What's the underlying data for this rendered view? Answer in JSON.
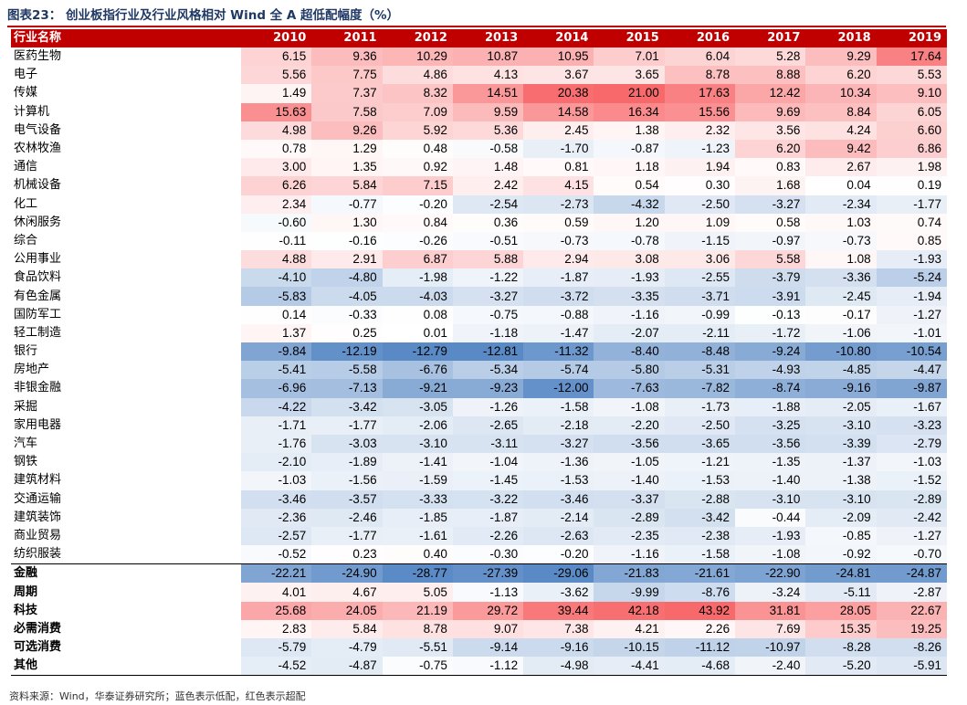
{
  "title": "图表23：  创业板指行业及行业风格相对 Wind 全 A 超低配幅度（%）",
  "source": "资料来源：Wind，华泰证券研究所；蓝色表示低配，红色表示超配",
  "table": {
    "header": "行业名称",
    "years": [
      "2010",
      "2011",
      "2012",
      "2013",
      "2014",
      "2015",
      "2016",
      "2017",
      "2018",
      "2019"
    ],
    "rows": [
      {
        "name": "医药生物",
        "values": [
          "6.15",
          "9.36",
          "10.29",
          "10.87",
          "10.95",
          "7.01",
          "6.04",
          "5.28",
          "9.29",
          "17.64"
        ]
      },
      {
        "name": "电子",
        "values": [
          "5.56",
          "7.75",
          "4.86",
          "4.13",
          "3.67",
          "3.65",
          "8.78",
          "8.88",
          "6.20",
          "5.53"
        ]
      },
      {
        "name": "传媒",
        "values": [
          "1.49",
          "7.37",
          "8.32",
          "14.51",
          "20.38",
          "21.00",
          "17.63",
          "12.42",
          "10.34",
          "9.10"
        ]
      },
      {
        "name": "计算机",
        "values": [
          "15.63",
          "7.58",
          "7.09",
          "9.59",
          "14.58",
          "16.34",
          "15.56",
          "9.69",
          "8.84",
          "6.05"
        ]
      },
      {
        "name": "电气设备",
        "values": [
          "4.98",
          "9.26",
          "5.92",
          "5.36",
          "2.45",
          "1.38",
          "2.32",
          "3.56",
          "4.24",
          "6.60"
        ]
      },
      {
        "name": "农林牧渔",
        "values": [
          "0.78",
          "1.29",
          "0.48",
          "-0.58",
          "-1.70",
          "-0.87",
          "-1.23",
          "6.20",
          "9.42",
          "6.86"
        ]
      },
      {
        "name": "通信",
        "values": [
          "3.00",
          "1.35",
          "0.92",
          "1.48",
          "0.81",
          "1.18",
          "1.94",
          "0.83",
          "2.67",
          "1.98"
        ]
      },
      {
        "name": "机械设备",
        "values": [
          "6.26",
          "5.84",
          "7.15",
          "2.42",
          "4.15",
          "0.54",
          "0.30",
          "1.68",
          "0.04",
          "0.19"
        ]
      },
      {
        "name": "化工",
        "values": [
          "2.34",
          "-0.77",
          "-0.20",
          "-2.54",
          "-2.73",
          "-4.32",
          "-2.50",
          "-3.27",
          "-2.34",
          "-1.77"
        ]
      },
      {
        "name": "休闲服务",
        "values": [
          "-0.60",
          "1.30",
          "0.84",
          "0.36",
          "0.59",
          "1.20",
          "1.09",
          "0.58",
          "1.03",
          "0.74"
        ]
      },
      {
        "name": "综合",
        "values": [
          "-0.11",
          "-0.16",
          "-0.26",
          "-0.51",
          "-0.73",
          "-0.78",
          "-1.15",
          "-0.97",
          "-0.73",
          "0.85"
        ]
      },
      {
        "name": "公用事业",
        "values": [
          "4.88",
          "2.91",
          "6.87",
          "5.88",
          "2.94",
          "3.08",
          "3.06",
          "5.58",
          "1.08",
          "-1.93"
        ]
      },
      {
        "name": "食品饮料",
        "values": [
          "-4.10",
          "-4.80",
          "-1.98",
          "-1.22",
          "-1.87",
          "-1.93",
          "-2.55",
          "-3.79",
          "-3.36",
          "-5.24"
        ]
      },
      {
        "name": "有色金属",
        "values": [
          "-5.83",
          "-4.05",
          "-4.03",
          "-3.27",
          "-3.72",
          "-3.35",
          "-3.71",
          "-3.91",
          "-2.45",
          "-1.94"
        ]
      },
      {
        "name": "国防军工",
        "values": [
          "0.14",
          "-0.33",
          "0.08",
          "-0.75",
          "-0.88",
          "-1.16",
          "-0.99",
          "-0.13",
          "-0.17",
          "-1.27"
        ]
      },
      {
        "name": "轻工制造",
        "values": [
          "1.37",
          "0.25",
          "0.01",
          "-1.18",
          "-1.47",
          "-2.07",
          "-2.11",
          "-1.72",
          "-1.06",
          "-1.01"
        ]
      },
      {
        "name": "银行",
        "values": [
          "-9.84",
          "-12.19",
          "-12.79",
          "-12.81",
          "-11.32",
          "-8.40",
          "-8.48",
          "-9.24",
          "-10.80",
          "-10.54"
        ]
      },
      {
        "name": "房地产",
        "values": [
          "-5.41",
          "-5.58",
          "-6.76",
          "-5.34",
          "-5.74",
          "-5.80",
          "-5.31",
          "-4.93",
          "-4.85",
          "-4.47"
        ]
      },
      {
        "name": "非银金融",
        "values": [
          "-6.96",
          "-7.13",
          "-9.21",
          "-9.23",
          "-12.00",
          "-7.63",
          "-7.82",
          "-8.74",
          "-9.16",
          "-9.87"
        ]
      },
      {
        "name": "采掘",
        "values": [
          "-4.22",
          "-3.42",
          "-3.05",
          "-1.26",
          "-1.58",
          "-1.08",
          "-1.73",
          "-1.88",
          "-2.05",
          "-1.67"
        ]
      },
      {
        "name": "家用电器",
        "values": [
          "-1.71",
          "-1.77",
          "-2.06",
          "-2.65",
          "-2.18",
          "-2.20",
          "-2.50",
          "-3.25",
          "-3.10",
          "-3.23"
        ]
      },
      {
        "name": "汽车",
        "values": [
          "-1.76",
          "-3.03",
          "-3.10",
          "-3.11",
          "-3.27",
          "-3.56",
          "-3.65",
          "-3.56",
          "-3.39",
          "-2.79"
        ]
      },
      {
        "name": "钢铁",
        "values": [
          "-2.10",
          "-1.89",
          "-1.41",
          "-1.04",
          "-1.36",
          "-1.05",
          "-1.21",
          "-1.35",
          "-1.37",
          "-1.03"
        ]
      },
      {
        "name": "建筑材料",
        "values": [
          "-1.03",
          "-1.56",
          "-1.59",
          "-1.45",
          "-1.53",
          "-1.40",
          "-1.53",
          "-1.40",
          "-1.38",
          "-1.52"
        ]
      },
      {
        "name": "交通运输",
        "values": [
          "-3.46",
          "-3.57",
          "-3.33",
          "-3.22",
          "-3.46",
          "-3.37",
          "-2.88",
          "-3.10",
          "-3.10",
          "-2.89"
        ]
      },
      {
        "name": "建筑装饰",
        "values": [
          "-2.36",
          "-2.46",
          "-1.85",
          "-1.87",
          "-2.14",
          "-2.89",
          "-3.42",
          "-0.44",
          "-2.09",
          "-2.42"
        ]
      },
      {
        "name": "商业贸易",
        "values": [
          "-2.57",
          "-1.77",
          "-1.61",
          "-2.26",
          "-2.63",
          "-2.35",
          "-2.38",
          "-1.93",
          "-0.85",
          "-1.27"
        ]
      },
      {
        "name": "纺织服装",
        "values": [
          "-0.52",
          "0.23",
          "0.40",
          "-0.30",
          "-0.20",
          "-1.16",
          "-1.58",
          "-1.08",
          "-0.92",
          "-0.70"
        ]
      }
    ],
    "summary": [
      {
        "name": "金融",
        "values": [
          "-22.21",
          "-24.90",
          "-28.77",
          "-27.39",
          "-29.06",
          "-21.83",
          "-21.61",
          "-22.90",
          "-24.81",
          "-24.87"
        ]
      },
      {
        "name": "周期",
        "values": [
          "4.01",
          "4.67",
          "5.05",
          "-1.13",
          "-3.62",
          "-9.99",
          "-8.76",
          "-3.24",
          "-5.11",
          "-2.87"
        ]
      },
      {
        "name": "科技",
        "values": [
          "25.68",
          "24.05",
          "21.19",
          "29.72",
          "39.44",
          "42.18",
          "43.92",
          "31.81",
          "28.05",
          "22.67"
        ]
      },
      {
        "name": "必需消费",
        "values": [
          "2.83",
          "5.84",
          "8.78",
          "9.07",
          "7.38",
          "4.21",
          "2.26",
          "7.69",
          "15.35",
          "19.25"
        ]
      },
      {
        "name": "可选消费",
        "values": [
          "-5.79",
          "-4.79",
          "-5.51",
          "-9.14",
          "-9.16",
          "-10.15",
          "-11.12",
          "-10.97",
          "-8.28",
          "-8.26"
        ]
      },
      {
        "name": "其他",
        "values": [
          "-4.52",
          "-4.87",
          "-0.75",
          "-1.12",
          "-4.98",
          "-4.41",
          "-4.68",
          "-2.40",
          "-5.20",
          "-5.91"
        ]
      }
    ]
  }
}
